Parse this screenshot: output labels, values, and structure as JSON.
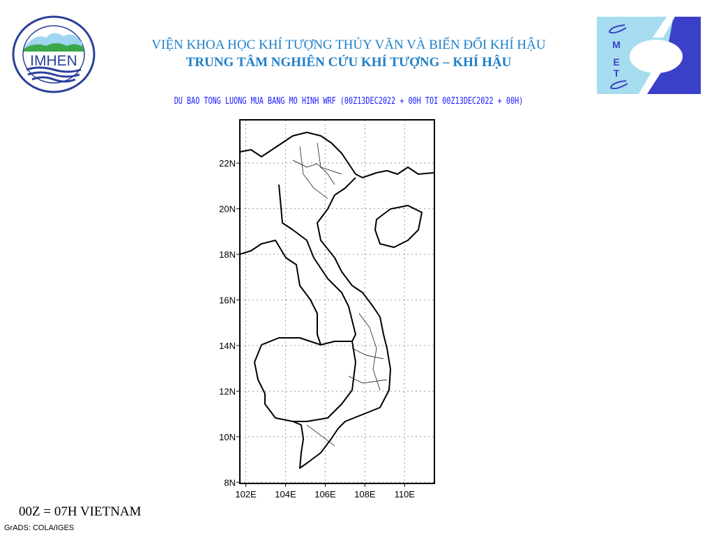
{
  "header": {
    "left_logo": {
      "text": "IMHEN",
      "ring_text": "VIỆN KHOA HỌC KHÍ TƯỢNG THỦY VĂN VÀ BIẾN ĐỔI KHÍ HẬU"
    },
    "right_logo": {
      "text": "CMETC",
      "colors": {
        "light": "#a6dcef",
        "dark": "#3b40c8"
      }
    },
    "title_line1": "VIỆN KHOA HỌC KHÍ TƯỢNG THỦY VĂN VÀ BIẾN ĐỔI KHÍ HẬU",
    "title_line2": "TRUNG TÂM NGHIÊN CỨU KHÍ TƯỢNG – KHÍ HẬU",
    "subtitle": "DU BAO TONG LUONG MUA BANG MO HINH WRF (00Z13DEC2022 + 00H TOI 00Z13DEC2022 + 00H)",
    "title_color": "#1e7fc8",
    "subtitle_color": "#1a1aff"
  },
  "map": {
    "lon_range": [
      101.7,
      111.5
    ],
    "lat_range": [
      7.95,
      23.9
    ],
    "grid": "dotted",
    "lat_labels": [
      "8N",
      "10N",
      "12N",
      "14N",
      "16N",
      "18N",
      "20N",
      "22N"
    ],
    "lon_labels": [
      "102E",
      "104E",
      "106E",
      "108E",
      "110E"
    ]
  },
  "footer": {
    "timezone_note": "00Z = 07H VIETNAM",
    "credit": "GrADS: COLA/IGES"
  }
}
